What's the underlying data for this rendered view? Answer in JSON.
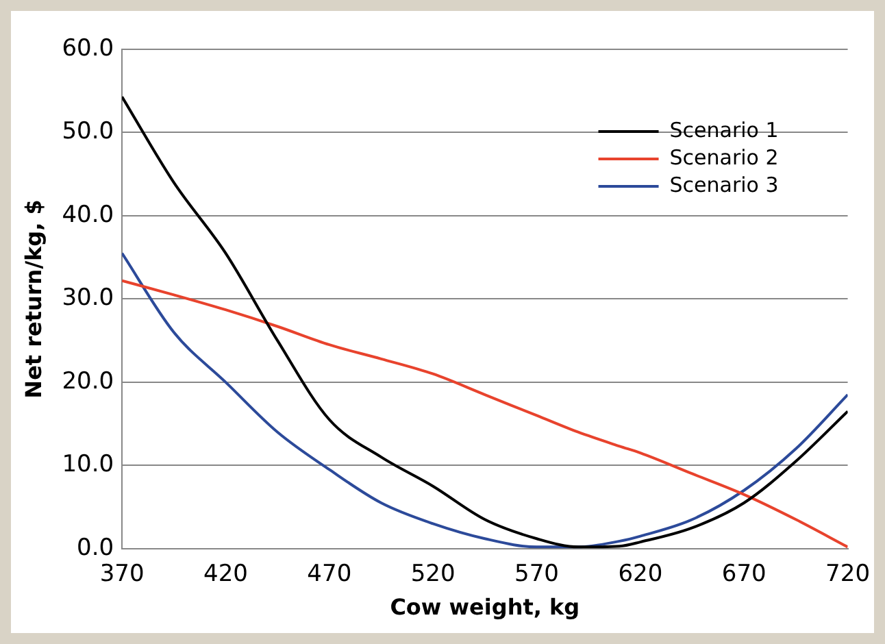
{
  "chart_data": {
    "type": "line",
    "xlabel": "Cow weight, kg",
    "ylabel": "Net return/kg, $",
    "x": [
      370,
      395,
      420,
      445,
      470,
      495,
      520,
      545,
      570,
      590,
      610,
      620,
      645,
      670,
      695,
      720
    ],
    "xlim": [
      370,
      720
    ],
    "xticks": [
      370,
      420,
      470,
      520,
      570,
      620,
      670,
      720
    ],
    "ylim": [
      0,
      60
    ],
    "yticks": [
      {
        "value": 0,
        "label": "0.0"
      },
      {
        "value": 10,
        "label": "10.0"
      },
      {
        "value": 20,
        "label": "20.0"
      },
      {
        "value": 30,
        "label": "30.0"
      },
      {
        "value": 40,
        "label": "40.0"
      },
      {
        "value": 50,
        "label": "50.0"
      },
      {
        "value": 60,
        "label": "60.0"
      }
    ],
    "grid": "y",
    "legend": "top right",
    "marker": "none",
    "line_style": "solid",
    "series": [
      {
        "name": "Scenario 1",
        "color": "#000000",
        "values": [
          54.3,
          44,
          35.5,
          25,
          15.5,
          11,
          7.5,
          3.5,
          1.2,
          0.2,
          0.3,
          0.8,
          2.5,
          5.5,
          10.5,
          16.5
        ]
      },
      {
        "name": "Scenario 2",
        "color": "#e8432d",
        "values": [
          32.2,
          30.5,
          28.7,
          26.7,
          24.5,
          22.8,
          21,
          18.5,
          16,
          14,
          12.3,
          11.5,
          9,
          6.5,
          3.5,
          0.2
        ]
      },
      {
        "name": "Scenario 3",
        "color": "#2c4a9a",
        "values": [
          35.5,
          26,
          20,
          14,
          9.5,
          5.5,
          3,
          1.2,
          0.2,
          0.2,
          0.9,
          1.5,
          3.5,
          7,
          12,
          18.5
        ]
      }
    ]
  }
}
